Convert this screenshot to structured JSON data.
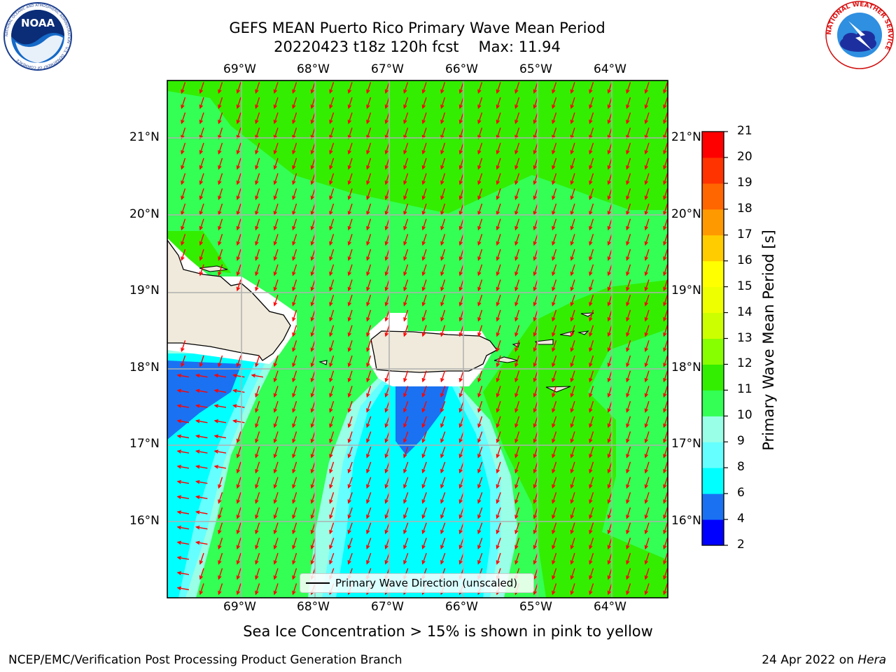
{
  "title": {
    "line1": "GEFS MEAN Puerto Rico Primary Wave Mean Period",
    "run": "20220423 t18z 120h fcst",
    "max": "Max: 11.94"
  },
  "map": {
    "lon_labels": [
      "69°W",
      "68°W",
      "67°W",
      "66°W",
      "65°W",
      "64°W"
    ],
    "lat_labels": [
      "21°N",
      "20°N",
      "19°N",
      "18°N",
      "17°N",
      "16°N"
    ],
    "legend_label": "Primary Wave Direction (unscaled)",
    "arrow_color": "#ff0000",
    "land_color": "#efeadb"
  },
  "colorbar": {
    "label": "Primary Wave Mean Period [s]",
    "ticks": [
      "2",
      "4",
      "6",
      "8",
      "9",
      "10",
      "11",
      "12",
      "13",
      "14",
      "15",
      "16",
      "17",
      "18",
      "19",
      "20",
      "21"
    ],
    "colors": [
      "#0000ff",
      "#1a72f2",
      "#00ffff",
      "#66ffff",
      "#99ffe6",
      "#33ff55",
      "#33ee00",
      "#88ff00",
      "#ccff00",
      "#eeff00",
      "#ffff00",
      "#ffcc00",
      "#ff9900",
      "#ff6600",
      "#ff3300",
      "#ff0000"
    ]
  },
  "note": "Sea Ice Concentration > 15% is shown in pink to yellow",
  "footer": {
    "left": "NCEP/EMC/Verification Post Processing Product Generation Branch",
    "date": "24 Apr 2022 on",
    "host": "Hera"
  },
  "logos": {
    "noaa": "NOAA",
    "noaa_ring": "NATIONAL OCEANIC AND ATMOSPHERIC ADMINISTRATION · U.S. DEPARTMENT OF COMMERCE",
    "nws_ring": "NATIONAL WEATHER SERVICE"
  }
}
